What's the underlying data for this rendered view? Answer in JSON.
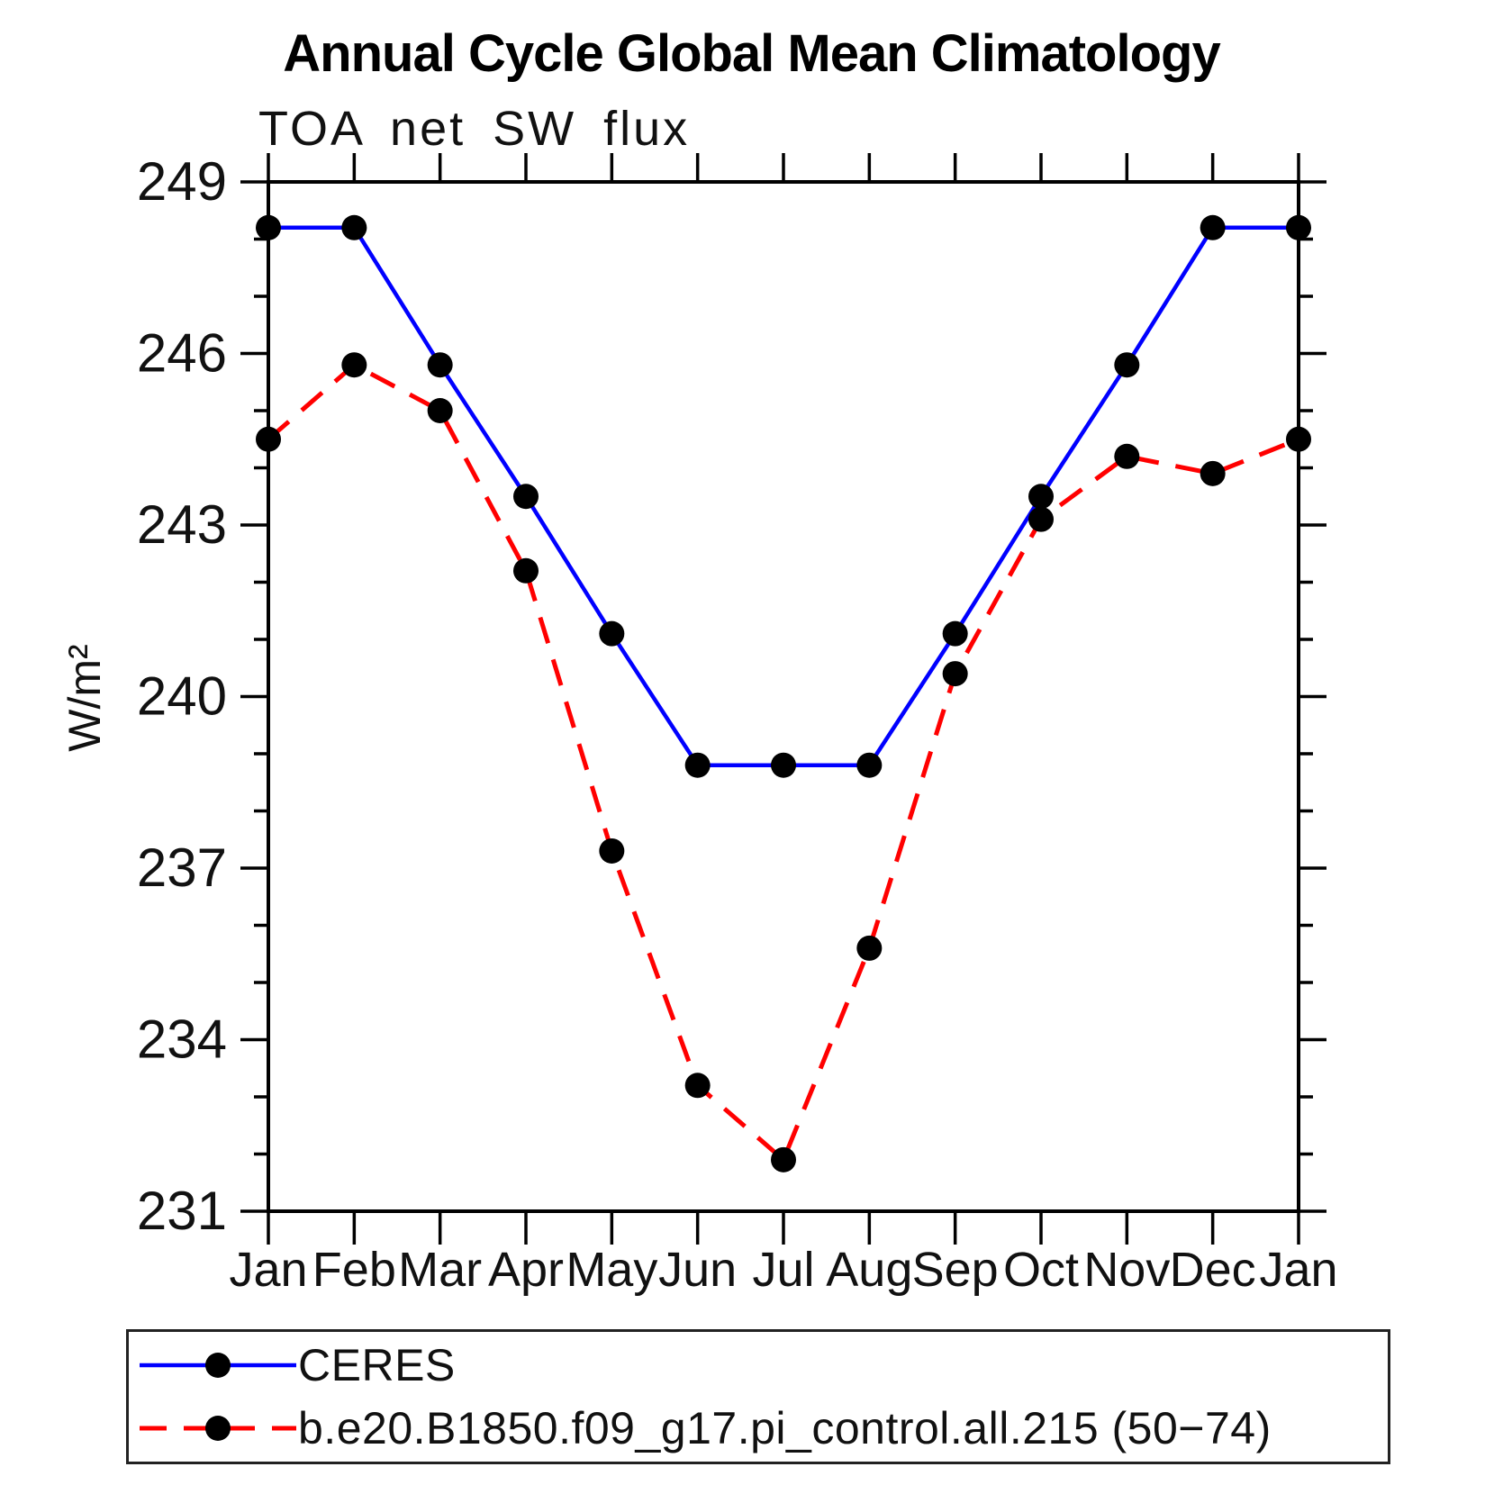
{
  "page": {
    "background": "#ffffff"
  },
  "chart_data": {
    "type": "line",
    "title": "Annual Cycle Global Mean Climatology",
    "subtitle": "TOA net SW flux",
    "ylabel": "W/m²",
    "categories": [
      "Jan",
      "Feb",
      "Mar",
      "Apr",
      "May",
      "Jun",
      "Jul",
      "Aug",
      "Sep",
      "Oct",
      "Nov",
      "Dec",
      "Jan"
    ],
    "ylim": [
      231,
      249
    ],
    "y_major_ticks": [
      231,
      234,
      237,
      240,
      243,
      246,
      249
    ],
    "y_tick_labels": [
      "231",
      "234",
      "237",
      "240",
      "243",
      "246",
      "249"
    ],
    "y_minor_step": 1,
    "grid": "off",
    "legend_position": "bottom-left-box",
    "axis_color": "#000000",
    "marker": "filled-circle",
    "marker_color": "#000000",
    "series": [
      {
        "name": "CERES",
        "color": "#0000ff",
        "line_style": "solid",
        "values": [
          248.2,
          248.2,
          245.8,
          243.5,
          241.1,
          238.8,
          238.8,
          238.8,
          241.1,
          243.5,
          245.8,
          248.2,
          248.2
        ]
      },
      {
        "name": "b.e20.B1850.f09_g17.pi_control.all.215 (50−74)",
        "color": "#ff0000",
        "line_style": "dashed",
        "values": [
          244.5,
          245.8,
          245.0,
          242.2,
          237.3,
          233.2,
          231.9,
          235.6,
          240.4,
          243.1,
          244.2,
          243.9,
          244.5
        ]
      }
    ]
  }
}
